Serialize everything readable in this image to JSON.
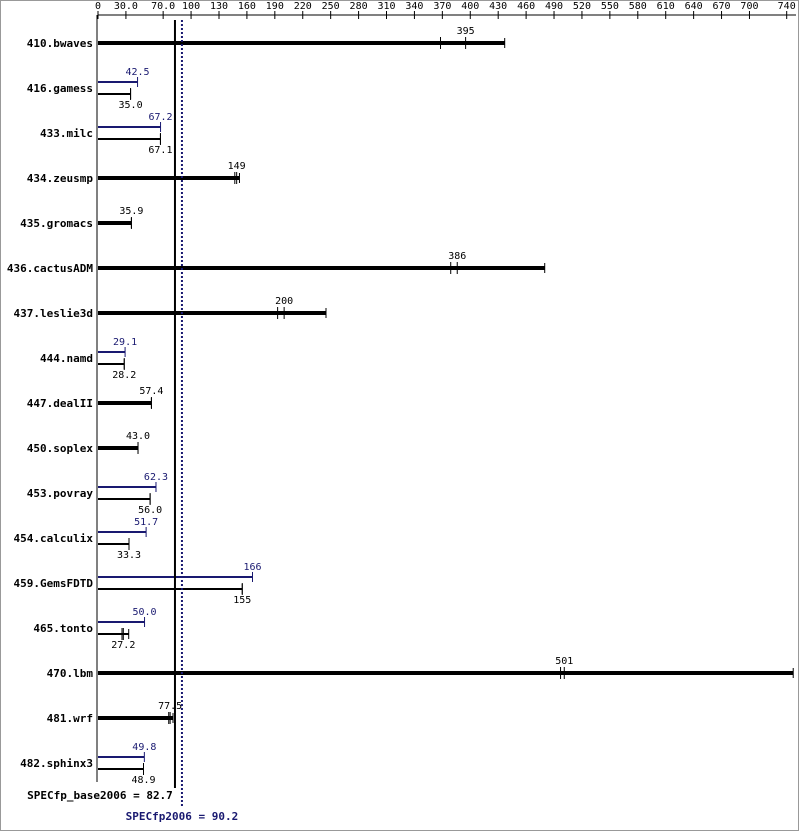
{
  "chart_data": {
    "type": "bar",
    "categories": [
      "410.bwaves",
      "416.gamess",
      "433.milc",
      "434.zeusmp",
      "435.gromacs",
      "436.cactusADM",
      "437.leslie3d",
      "444.namd",
      "447.dealII",
      "450.soplex",
      "453.povray",
      "454.calculix",
      "459.GemsFDTD",
      "465.tonto",
      "470.lbm",
      "481.wrf",
      "482.sphinx3"
    ],
    "series": [
      {
        "name": "SPECfp_base2006",
        "color": "#000000",
        "summary": 82.7,
        "summary_label": "SPECfp_base2006 = 82.7",
        "values": [
          395,
          35,
          67.1,
          149,
          35.9,
          386,
          200,
          28.2,
          57.4,
          43,
          56,
          33.3,
          155,
          27.2,
          501,
          77.5,
          48.9
        ],
        "value_labels": [
          "395",
          "35.0",
          "67.1",
          "149",
          "35.9",
          "386",
          "200",
          "28.2",
          "57.4",
          "43.0",
          "56.0",
          "33.3",
          "155",
          "27.2",
          "501",
          "77.5",
          "48.9"
        ],
        "ranges": [
          [
            368,
            437
          ],
          null,
          null,
          [
            147,
            152
          ],
          null,
          [
            379,
            480
          ],
          [
            193,
            245
          ],
          null,
          null,
          null,
          null,
          null,
          null,
          [
            25.8,
            33
          ],
          [
            497,
            747
          ],
          [
            76,
            80.6
          ],
          null
        ]
      },
      {
        "name": "SPECfp2006",
        "color": "#191970",
        "summary": 90.2,
        "summary_label": "SPECfp2006 = 90.2",
        "values": [
          null,
          42.5,
          67.2,
          null,
          null,
          null,
          null,
          29.1,
          null,
          null,
          62.3,
          51.7,
          166,
          50,
          null,
          null,
          49.8
        ],
        "value_labels": [
          null,
          "42.5",
          "67.2",
          null,
          null,
          null,
          null,
          "29.1",
          null,
          null,
          "62.3",
          "51.7",
          "166",
          "50.0",
          null,
          null,
          "49.8"
        ]
      }
    ],
    "xlim": [
      0,
      750
    ],
    "xticks": [
      0,
      {
        "value": 30,
        "label": "30.0"
      },
      {
        "value": 70,
        "label": "70.0"
      },
      100,
      130,
      160,
      190,
      220,
      250,
      280,
      310,
      340,
      370,
      400,
      430,
      460,
      490,
      520,
      550,
      580,
      610,
      640,
      670,
      700,
      740
    ]
  }
}
